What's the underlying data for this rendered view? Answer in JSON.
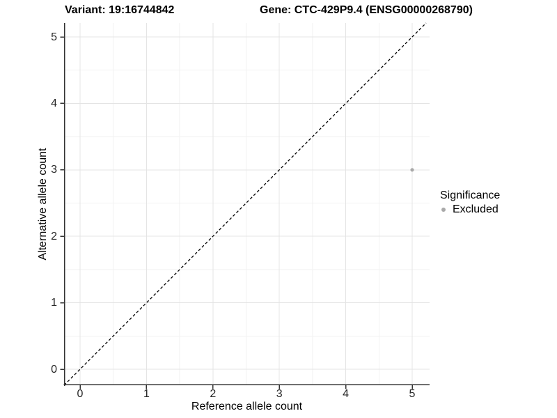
{
  "titles": {
    "variant": "Variant: 19:16744842",
    "gene": "Gene: CTC-429P9.4 (ENSG00000268790)"
  },
  "axes": {
    "x_label": "Reference allele count",
    "y_label": "Alternative allele count"
  },
  "legend": {
    "title": "Significance",
    "items": [
      {
        "label": "Excluded",
        "color": "#a9a9a9",
        "marker": "circle"
      }
    ]
  },
  "colors": {
    "background": "#ffffff",
    "axis_line": "#333333",
    "tick_mark": "#333333",
    "title_text": "#000000",
    "tick_text": "#262626",
    "grid_major": "#e4e4e4",
    "grid_minor": "#f2f2f2",
    "reference_line": "#000000",
    "point": "#a9a9a9"
  },
  "chart_data": {
    "type": "scatter",
    "title": "Variant: 19:16744842 — Gene: CTC-429P9.4 (ENSG00000268790)",
    "xlabel": "Reference allele count",
    "ylabel": "Alternative allele count",
    "xlim": [
      -0.25,
      5.25
    ],
    "ylim": [
      -0.25,
      5.25
    ],
    "x_ticks": [
      0,
      1,
      2,
      3,
      4,
      5
    ],
    "y_ticks": [
      0,
      1,
      2,
      3,
      4,
      5
    ],
    "grid": {
      "major": true,
      "minor": true,
      "minor_step": 0.5
    },
    "series": [
      {
        "name": "Excluded",
        "marker": "circle",
        "color": "#a9a9a9",
        "points": [
          {
            "x": 5,
            "y": 3
          }
        ]
      }
    ],
    "reference_line": {
      "kind": "identity y=x",
      "style": "dashed",
      "color": "#000000"
    },
    "legend_position": "right",
    "legend_title": "Significance"
  }
}
